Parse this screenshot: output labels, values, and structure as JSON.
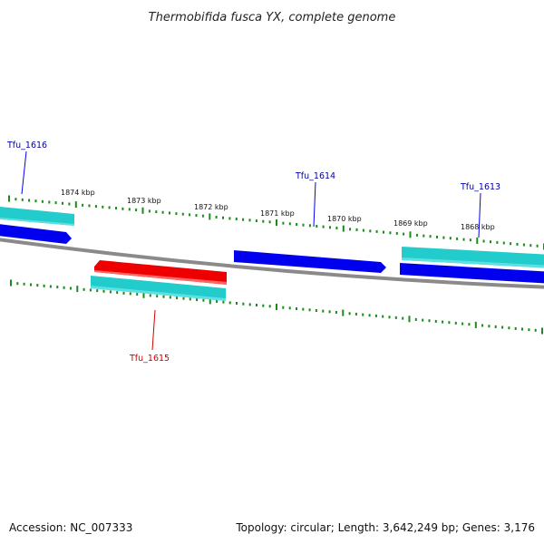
{
  "title": "Thermobifida fusca YX, complete genome",
  "footer": {
    "accession": "Accession: NC_007333",
    "summary": "Topology: circular; Length: 3,642,249 bp; Genes: 3,176"
  },
  "colors": {
    "forward_gene": "#0000ee",
    "reverse_gene": "#22cccc",
    "highlight_gene": "#ee0000",
    "tick": "#1a8a1a",
    "backbone": "#8a8a8a",
    "forward_label": "#0000aa",
    "highlight_label": "#cc0000"
  },
  "scale_labels": [
    "1874 kbp",
    "1873 kbp",
    "1872 kbp",
    "1871 kbp",
    "1870 kbp",
    "1869 kbp",
    "1868 kbp"
  ],
  "genes": [
    {
      "name": "Tfu_1616",
      "strand": "forward",
      "highlight": false
    },
    {
      "name": "Tfu_1615",
      "strand": "reverse",
      "highlight": true
    },
    {
      "name": "Tfu_1614",
      "strand": "forward",
      "highlight": false
    },
    {
      "name": "Tfu_1613",
      "strand": "forward",
      "highlight": false
    }
  ]
}
